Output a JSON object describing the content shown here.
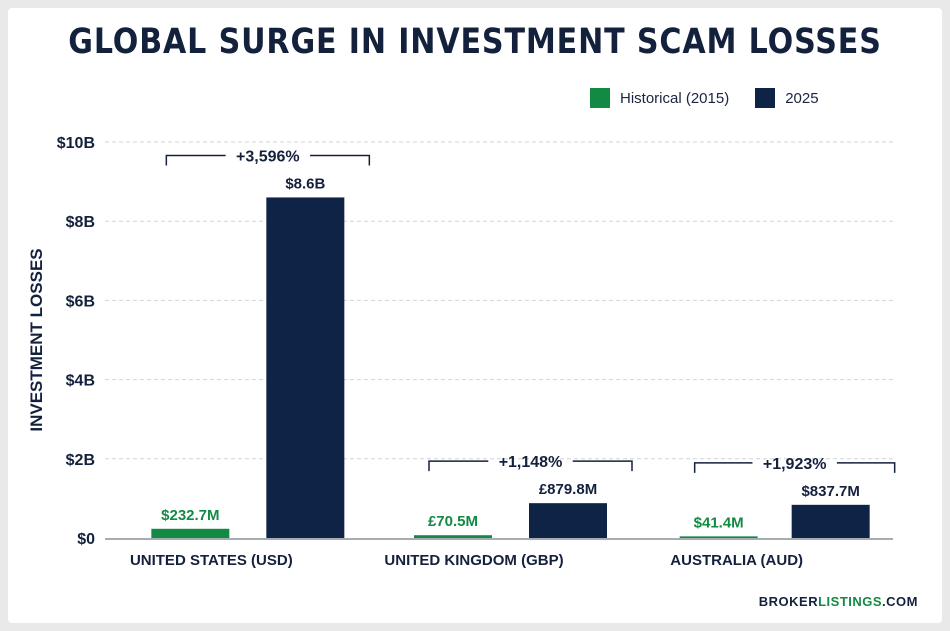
{
  "title": "GLOBAL SURGE IN INVESTMENT SCAM LOSSES",
  "brand": {
    "part1": "BROKER",
    "part2": "LISTINGS",
    "part3": ".COM"
  },
  "colors": {
    "historical": "#138a43",
    "current": "#0f2347",
    "text": "#14213d",
    "grid": "#cfd3da"
  },
  "chart_data": {
    "type": "bar",
    "title": "GLOBAL SURGE IN INVESTMENT SCAM LOSSES",
    "xlabel": "",
    "ylabel": "INVESTMENT LOSSES",
    "ylim": [
      0,
      10
    ],
    "y_unit": "billions",
    "y_ticks": [
      0,
      2,
      4,
      6,
      8,
      10
    ],
    "y_tick_labels": [
      "$0",
      "$2B",
      "$4B",
      "$6B",
      "$8B",
      "$10B"
    ],
    "grid": true,
    "legend_position": "top-right",
    "categories": [
      "UNITED STATES (USD)",
      "UNITED KINGDOM (GBP)",
      "AUSTRALIA (AUD)"
    ],
    "series": [
      {
        "name": "Historical (2015)",
        "values": [
          0.2327,
          0.0705,
          0.0414
        ],
        "labels": [
          "$232.7M",
          "£70.5M",
          "$41.4M"
        ]
      },
      {
        "name": "2025",
        "values": [
          8.6,
          0.8798,
          0.8377
        ],
        "labels": [
          "$8.6B",
          "£879.8M",
          "$837.7M"
        ]
      }
    ],
    "annotations": [
      "+3,596%",
      "+1,148%",
      "+1,923%"
    ]
  }
}
